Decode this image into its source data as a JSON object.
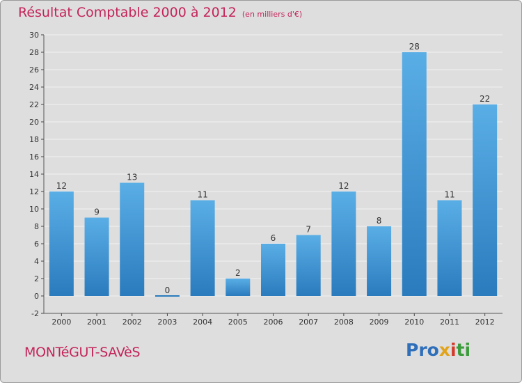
{
  "header": {
    "title": "Résultat Comptable 2000 à 2012",
    "subtitle": "(en milliers d'€)"
  },
  "footer": {
    "commune": "MONTéGUT-SAVèS",
    "logo": [
      "Pro",
      "x",
      "i",
      "ti"
    ]
  },
  "colors": {
    "background": "#dedede",
    "bar_light": "#5aaee6",
    "bar_dark": "#2a7bbd",
    "title": "#c4245a"
  },
  "chart_data": {
    "type": "bar",
    "title": "Résultat Comptable 2000 à 2012",
    "subtitle": "(en milliers d'€)",
    "categories": [
      "2000",
      "2001",
      "2002",
      "2003",
      "2004",
      "2005",
      "2006",
      "2007",
      "2008",
      "2009",
      "2010",
      "2011",
      "2012"
    ],
    "values": [
      12,
      9,
      13,
      0,
      11,
      2,
      6,
      7,
      12,
      8,
      28,
      11,
      22
    ],
    "ylim": [
      -2,
      30
    ],
    "yticks": [
      -2,
      0,
      2,
      4,
      6,
      8,
      10,
      12,
      14,
      16,
      18,
      20,
      22,
      24,
      26,
      28,
      30
    ],
    "grid": true
  }
}
